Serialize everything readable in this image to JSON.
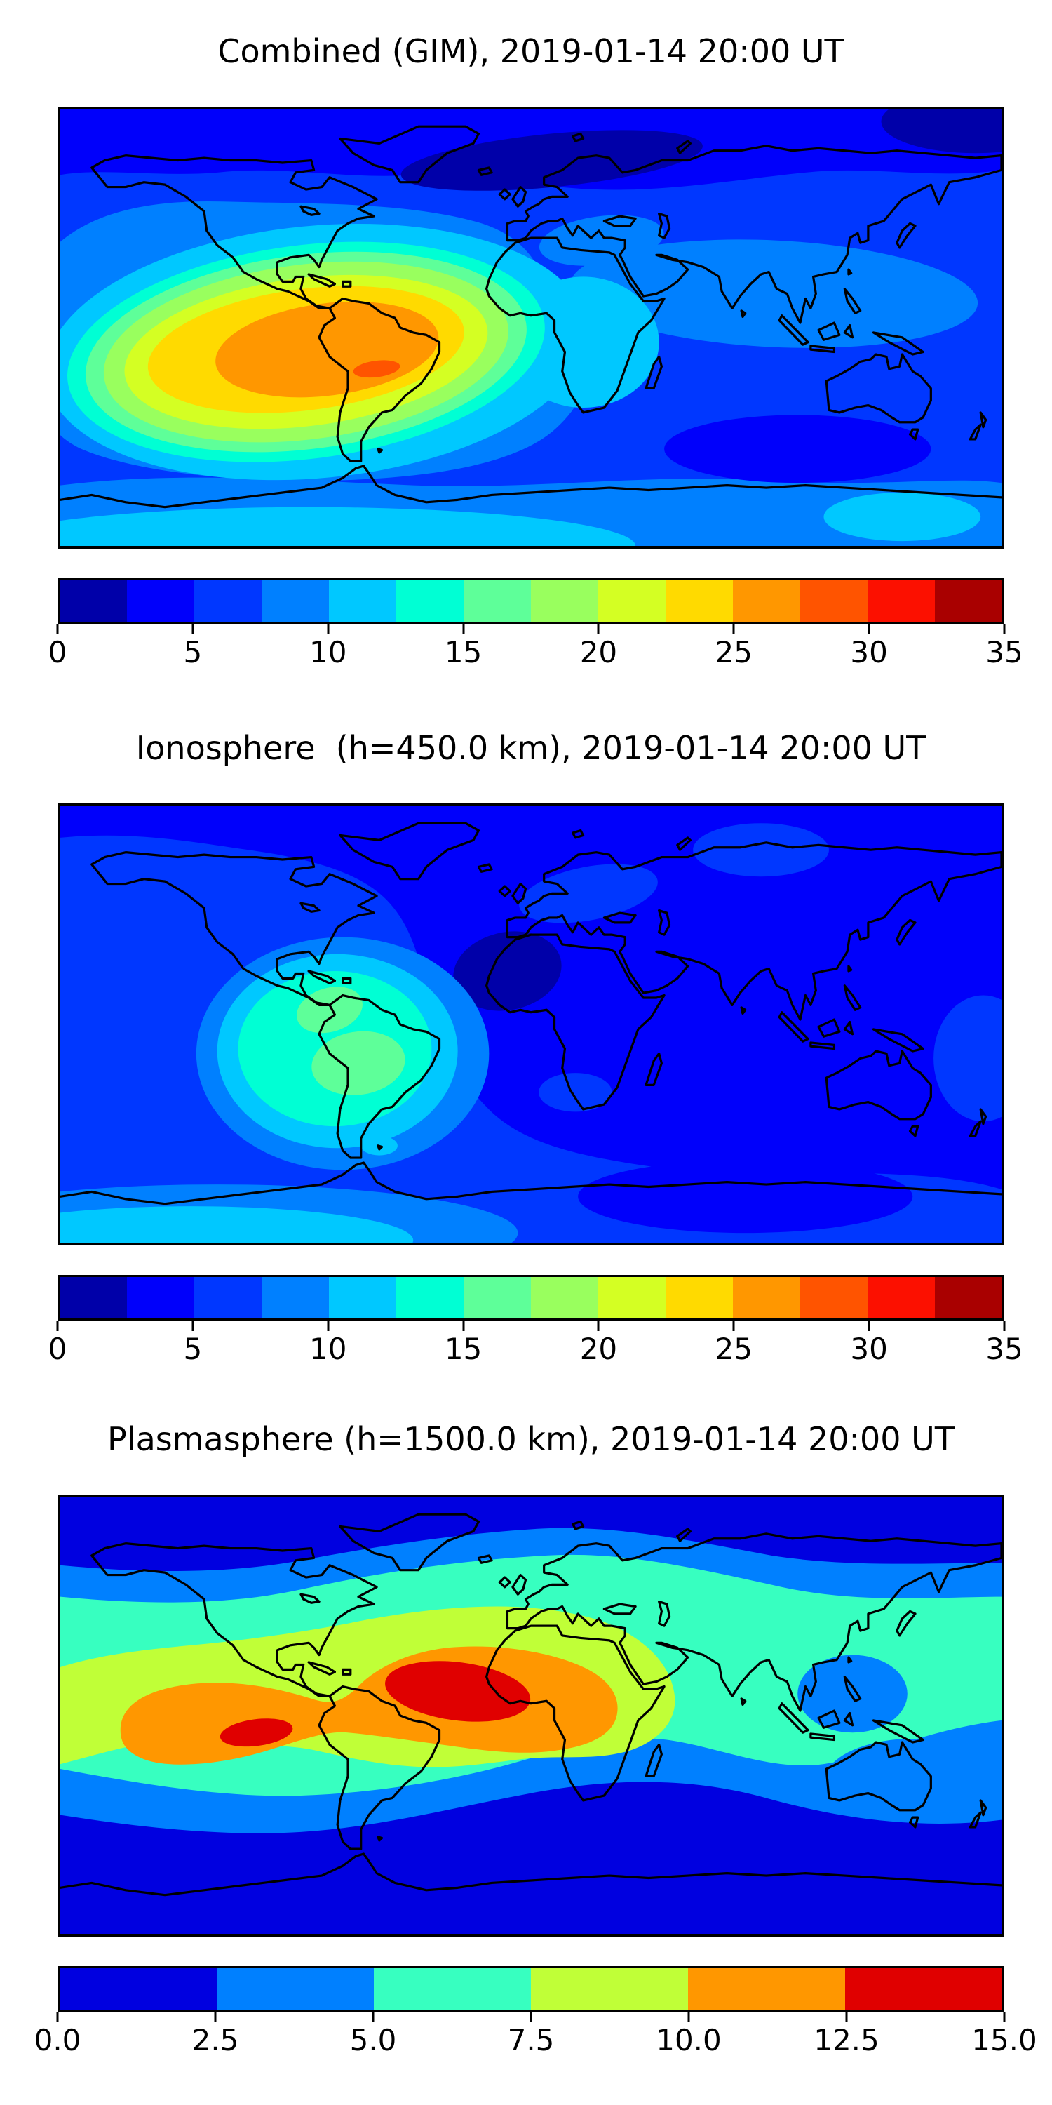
{
  "figure": {
    "panels": [
      {
        "id": "combined",
        "title": "Combined (GIM), 2019-01-14 20:00 UT",
        "colorbar": {
          "min": 0,
          "max": 35,
          "tick_labels": [
            "0",
            "5",
            "10",
            "15",
            "20",
            "25",
            "30",
            "35"
          ],
          "colors": [
            "#0000A9",
            "#0000FB",
            "#0037FF",
            "#0080FF",
            "#00C8FF",
            "#00FFD4",
            "#5EFF99",
            "#99FF5E",
            "#D4FF23",
            "#FFDA00",
            "#FF9700",
            "#FF5400",
            "#FC1000",
            "#A90000"
          ]
        }
      },
      {
        "id": "ionosphere",
        "title": "Ionosphere  (h=450.0 km), 2019-01-14 20:00 UT",
        "colorbar": {
          "min": 0,
          "max": 35,
          "tick_labels": [
            "0",
            "5",
            "10",
            "15",
            "20",
            "25",
            "30",
            "35"
          ],
          "colors": [
            "#0000A9",
            "#0000FB",
            "#0037FF",
            "#0080FF",
            "#00C8FF",
            "#00FFD4",
            "#5EFF99",
            "#99FF5E",
            "#D4FF23",
            "#FFDA00",
            "#FF9700",
            "#FF5400",
            "#FC1000",
            "#A90000"
          ]
        }
      },
      {
        "id": "plasmasphere",
        "title": "Plasmasphere (h=1500.0 km), 2019-01-14 20:00 UT",
        "colorbar": {
          "min": 0,
          "max": 15,
          "tick_labels": [
            "0.0",
            "2.5",
            "5.0",
            "7.5",
            "10.0",
            "12.5",
            "15.0"
          ],
          "colors": [
            "#0000E0",
            "#0080FF",
            "#37FFC0",
            "#C0FF37",
            "#FF9700",
            "#E00000"
          ]
        }
      }
    ]
  },
  "chart_data": [
    {
      "type": "heatmap",
      "subtype": "filled-contour world map",
      "title": "Combined (GIM), 2019-01-14 20:00 UT",
      "timestamp_shown": "2019-01-14 20:00 UT",
      "projection": "equirectangular",
      "lon_range": [
        -180,
        180
      ],
      "lat_range": [
        -90,
        90
      ],
      "colormap": "jet (discrete, 14 bins)",
      "levels": [
        0,
        2.5,
        5,
        7.5,
        10,
        12.5,
        15,
        17.5,
        20,
        22.5,
        25,
        27.5,
        30,
        32.5,
        35
      ],
      "legend_position": "horizontal colorbar below map",
      "grid": false,
      "features": [
        {
          "name": "main enhancement",
          "approx_center_lon_lat": [
            -60,
            -17
          ],
          "peak_bin": "30 to 32.5",
          "extent": "lon -155 to -25, lat -60 to +10, orange core 25-30 over South America"
        },
        {
          "name": "secondary enhancement",
          "approx_center_lon_lat": [
            18,
            -7
          ],
          "bin": "10 to 12.5",
          "extent": "equatorial Africa"
        },
        {
          "name": "south Asia moderate band",
          "approx_center_lon_lat": [
            90,
            15
          ],
          "bin": "7.5 to 10"
        },
        {
          "name": "polar minimum",
          "approx_center_lon_lat": [
            8,
            70
          ],
          "bin": "0 to 2.5",
          "extent": "northern Europe / Greenland Sea"
        },
        {
          "name": "south Indian Ocean low",
          "approx_center_lon_lat": [
            100,
            -50
          ],
          "bin": "2.5 to 5"
        },
        {
          "name": "background high northern latitudes",
          "bin": "2.5 to 7.5"
        }
      ]
    },
    {
      "type": "heatmap",
      "subtype": "filled-contour world map",
      "title": "Ionosphere  (h=450.0 km), 2019-01-14 20:00 UT",
      "timestamp_shown": "2019-01-14 20:00 UT",
      "projection": "equirectangular",
      "lon_range": [
        -180,
        180
      ],
      "lat_range": [
        -90,
        90
      ],
      "colormap": "jet (discrete, 14 bins)",
      "levels": [
        0,
        2.5,
        5,
        7.5,
        10,
        12.5,
        15,
        17.5,
        20,
        22.5,
        25,
        27.5,
        30,
        32.5,
        35
      ],
      "legend_position": "horizontal colorbar below map",
      "grid": false,
      "features": [
        {
          "name": "main enhancement",
          "approx_center_lon_lat": [
            -62,
            -16
          ],
          "peak_bin": "12.5 to 15",
          "extent": "two pale-green lobes over NW and central South America inside turquoise/cyan rings lon -125 to -25, lat -50 to +12"
        },
        {
          "name": "eastern hemisphere background",
          "bin": "2.5 to 5"
        },
        {
          "name": "minimum",
          "approx_center_lon_lat": [
            -10,
            22
          ],
          "bin": "0 to 2.5",
          "extent": "NW Africa"
        },
        {
          "name": "Americas / east Pacific background",
          "bin": "5 to 7.5"
        },
        {
          "name": "weak highs",
          "approx_center_lon_lat": [
            25,
            55
          ],
          "bin": "5 to 7.5",
          "extent": "ovals over N Europe and Siberia"
        },
        {
          "name": "Antarctic coastal patch",
          "approx_center_lon_lat": [
            -150,
            -80
          ],
          "bin": "7.5 to 10"
        }
      ]
    },
    {
      "type": "heatmap",
      "subtype": "filled-contour world map",
      "title": "Plasmasphere (h=1500.0 km), 2019-01-14 20:00 UT",
      "timestamp_shown": "2019-01-14 20:00 UT",
      "projection": "equirectangular",
      "lon_range": [
        -180,
        180
      ],
      "lat_range": [
        -90,
        90
      ],
      "colormap": "jet (discrete, 6 bins)",
      "levels": [
        0,
        2.5,
        5,
        7.5,
        10,
        12.5,
        15
      ],
      "legend_position": "horizontal colorbar below map",
      "grid": false,
      "features": [
        {
          "name": "equatorial maximum 1",
          "approx_center_lon_lat": [
            -28,
            -10
          ],
          "peak_bin": "12.5 to 15",
          "extent": "NE Brazil / tropical Atlantic / west Africa"
        },
        {
          "name": "equatorial maximum 2",
          "approx_center_lon_lat": [
            -106,
            -7
          ],
          "peak_bin": "12.5 to 15",
          "extent": "small core, eastern Pacific"
        },
        {
          "name": "orange belt",
          "bin": "10 to 12.5",
          "extent": "lon -157 to +33, lat -22 to +12"
        },
        {
          "name": "yellow-green belt",
          "bin": "7.5 to 10",
          "extent": "lon -180 to +55 around equator"
        },
        {
          "name": "turquoise band",
          "bin": "5 to 7.5",
          "extent": "global mid-latitude band"
        },
        {
          "name": "local low",
          "approx_center_lon_lat": [
            123,
            9
          ],
          "bin": "2.5 to 5",
          "extent": "Philippines oval"
        },
        {
          "name": "polar minima",
          "bin": "0 to 2.5",
          "extent": "poleward of about ±50 lat"
        }
      ]
    }
  ]
}
